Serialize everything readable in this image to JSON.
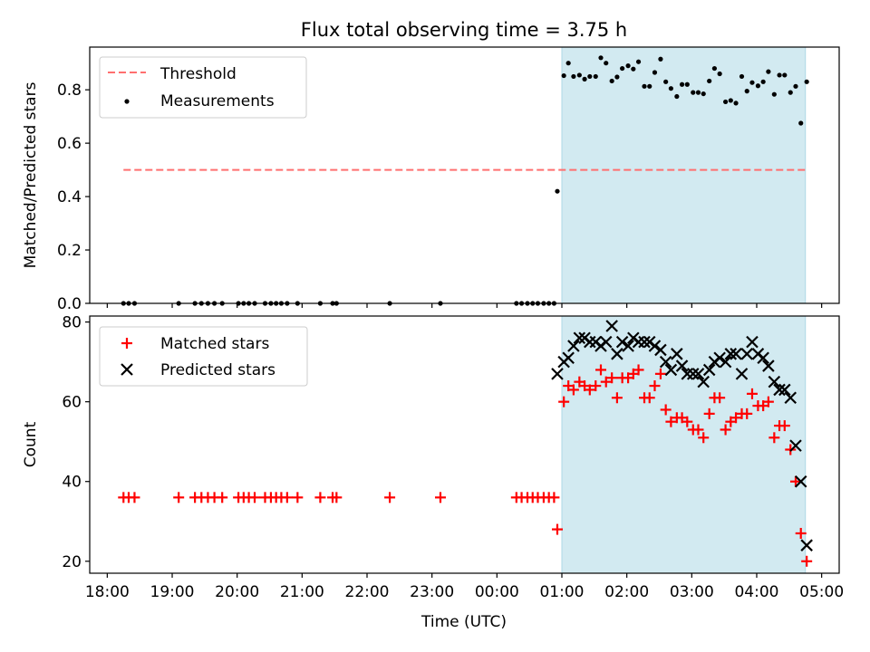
{
  "figure": {
    "title": "Flux total observing time = 3.75 h",
    "xlabel": "Time (UTC)"
  },
  "colors": {
    "threshold": "#ff6f6f",
    "measurements": "#000000",
    "matched": "#ff0000",
    "predicted": "#000000",
    "span": "#add8e6"
  },
  "chart_data": [
    {
      "type": "scatter",
      "ylabel": "Matched/Predicted stars",
      "x_unit": "hours since 18:00 UTC",
      "xlim": [
        -0.27,
        11.27
      ],
      "ylim": [
        0.0,
        0.96
      ],
      "yticks": [
        0.0,
        0.2,
        0.4,
        0.6,
        0.8
      ],
      "ytick_labels": [
        "0.0",
        "0.2",
        "0.4",
        "0.6",
        "0.8"
      ],
      "xticks": [
        0,
        1,
        2,
        3,
        4,
        5,
        6,
        7,
        8,
        9,
        10,
        11
      ],
      "xtick_labels": [],
      "highlight_span": [
        7.0,
        10.75
      ],
      "threshold": {
        "name": "Threshold",
        "y": 0.5,
        "x_range": [
          0.25,
          10.75
        ]
      },
      "legend": {
        "position": "upper left",
        "entries": [
          "Threshold",
          "Measurements"
        ]
      },
      "series": [
        {
          "name": "Measurements",
          "marker": "dot",
          "x": [
            0.25,
            0.33,
            0.42,
            1.1,
            1.35,
            1.45,
            1.55,
            1.65,
            1.77,
            2.02,
            2.1,
            2.18,
            2.27,
            2.43,
            2.52,
            2.6,
            2.68,
            2.77,
            2.93,
            3.28,
            3.47,
            3.53,
            4.35,
            5.13,
            6.3,
            6.38,
            6.47,
            6.55,
            6.63,
            6.72,
            6.8,
            6.88,
            6.93,
            7.03,
            7.1,
            7.18,
            7.27,
            7.35,
            7.43,
            7.52,
            7.6,
            7.68,
            7.77,
            7.85,
            7.93,
            8.02,
            8.1,
            8.18,
            8.27,
            8.35,
            8.43,
            8.52,
            8.6,
            8.68,
            8.77,
            8.85,
            8.93,
            9.02,
            9.1,
            9.18,
            9.27,
            9.35,
            9.43,
            9.52,
            9.6,
            9.68,
            9.77,
            9.85,
            9.93,
            10.02,
            10.1,
            10.18,
            10.27,
            10.35,
            10.43,
            10.52,
            10.6,
            10.68,
            10.77
          ],
          "y": [
            0,
            0,
            0,
            0,
            0,
            0,
            0,
            0,
            0,
            0,
            0,
            0,
            0,
            0,
            0,
            0,
            0,
            0,
            0,
            0,
            0,
            0,
            0,
            0,
            0,
            0,
            0,
            0,
            0,
            0,
            0,
            0,
            0.42,
            0.853,
            0.9,
            0.85,
            0.855,
            0.84,
            0.85,
            0.85,
            0.92,
            0.9,
            0.833,
            0.848,
            0.88,
            0.89,
            0.878,
            0.905,
            0.813,
            0.813,
            0.865,
            0.915,
            0.83,
            0.805,
            0.775,
            0.82,
            0.82,
            0.79,
            0.79,
            0.785,
            0.833,
            0.88,
            0.86,
            0.755,
            0.76,
            0.75,
            0.85,
            0.795,
            0.827,
            0.815,
            0.83,
            0.868,
            0.783,
            0.855,
            0.855,
            0.79,
            0.813,
            0.675,
            0.83
          ]
        }
      ]
    },
    {
      "type": "scatter",
      "ylabel": "Count",
      "x_unit": "hours since 18:00 UTC",
      "xlim": [
        -0.27,
        11.27
      ],
      "ylim": [
        17.0,
        81.5
      ],
      "yticks": [
        20,
        40,
        60,
        80
      ],
      "ytick_labels": [
        "20",
        "40",
        "60",
        "80"
      ],
      "xticks": [
        0,
        1,
        2,
        3,
        4,
        5,
        6,
        7,
        8,
        9,
        10,
        11
      ],
      "xtick_labels": [
        "18:00",
        "19:00",
        "20:00",
        "21:00",
        "22:00",
        "23:00",
        "00:00",
        "01:00",
        "02:00",
        "03:00",
        "04:00",
        "05:00"
      ],
      "highlight_span": [
        7.0,
        10.75
      ],
      "legend": {
        "position": "upper left",
        "entries": [
          "Matched stars",
          "Predicted stars"
        ]
      },
      "series": [
        {
          "name": "Matched stars",
          "marker": "plus",
          "x": [
            0.25,
            0.33,
            0.42,
            1.1,
            1.35,
            1.45,
            1.55,
            1.65,
            1.77,
            2.02,
            2.1,
            2.18,
            2.27,
            2.43,
            2.52,
            2.6,
            2.68,
            2.77,
            2.93,
            3.28,
            3.47,
            3.53,
            4.35,
            5.13,
            6.3,
            6.38,
            6.47,
            6.55,
            6.63,
            6.72,
            6.8,
            6.88,
            6.93,
            7.03,
            7.1,
            7.18,
            7.27,
            7.35,
            7.43,
            7.52,
            7.6,
            7.68,
            7.77,
            7.85,
            7.93,
            8.02,
            8.1,
            8.18,
            8.27,
            8.35,
            8.43,
            8.52,
            8.6,
            8.68,
            8.77,
            8.85,
            8.93,
            9.02,
            9.1,
            9.18,
            9.27,
            9.35,
            9.43,
            9.52,
            9.6,
            9.68,
            9.77,
            9.85,
            9.93,
            10.02,
            10.1,
            10.18,
            10.27,
            10.35,
            10.43,
            10.52,
            10.6,
            10.68,
            10.77
          ],
          "y": [
            36,
            36,
            36,
            36,
            36,
            36,
            36,
            36,
            36,
            36,
            36,
            36,
            36,
            36,
            36,
            36,
            36,
            36,
            36,
            36,
            36,
            36,
            36,
            36,
            36,
            36,
            36,
            36,
            36,
            36,
            36,
            36,
            28,
            60,
            64,
            63,
            65,
            64,
            63,
            64,
            68,
            65,
            66,
            61,
            66,
            66,
            67,
            68,
            61,
            61,
            64,
            67,
            58,
            55,
            56,
            56,
            55,
            53,
            53,
            51,
            57,
            61,
            61,
            53,
            55,
            56,
            57,
            57,
            62,
            59,
            59,
            60,
            51,
            54,
            54,
            48,
            40,
            27,
            20
          ]
        },
        {
          "name": "Predicted stars",
          "marker": "x",
          "x": [
            6.93,
            7.03,
            7.1,
            7.18,
            7.27,
            7.35,
            7.43,
            7.52,
            7.6,
            7.68,
            7.77,
            7.85,
            7.93,
            8.02,
            8.1,
            8.18,
            8.27,
            8.35,
            8.43,
            8.52,
            8.6,
            8.68,
            8.77,
            8.85,
            8.93,
            9.02,
            9.1,
            9.18,
            9.27,
            9.35,
            9.43,
            9.52,
            9.6,
            9.68,
            9.77,
            9.85,
            9.93,
            10.02,
            10.1,
            10.18,
            10.27,
            10.35,
            10.43,
            10.52,
            10.6,
            10.68,
            10.77
          ],
          "y": [
            67,
            70,
            71,
            74,
            76,
            76,
            75,
            75,
            74,
            75,
            79,
            72,
            75,
            74,
            76,
            75,
            75,
            75,
            74,
            73,
            70,
            68,
            72,
            69,
            67,
            67,
            67,
            65,
            68,
            70,
            71,
            70,
            72,
            72,
            67,
            72,
            75,
            72,
            71,
            69,
            65,
            63,
            63,
            61,
            49,
            40,
            24
          ]
        }
      ]
    }
  ]
}
